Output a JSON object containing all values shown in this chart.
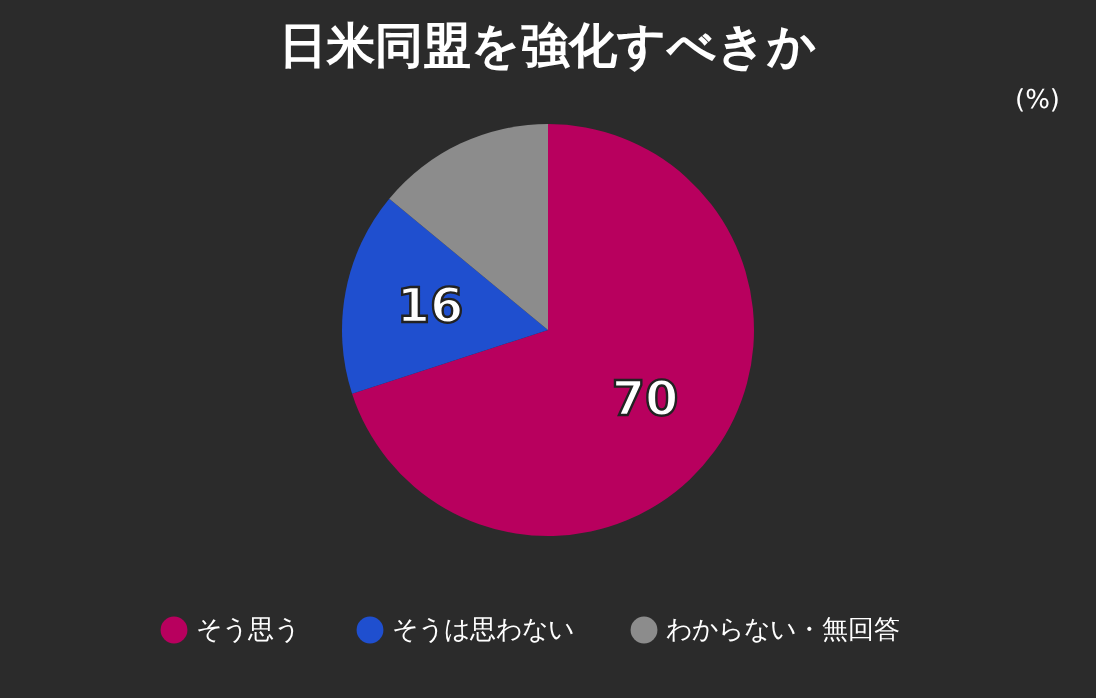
{
  "chart_data": {
    "type": "pie",
    "title": "日米同盟を強化すべきか",
    "annotations": [
      "(%)"
    ],
    "categories": [
      "そう思う",
      "そうは思わない",
      "わからない・無回答"
    ],
    "values": [
      70,
      16,
      14
    ],
    "value_labels": [
      "70",
      "16",
      null
    ],
    "colors": [
      "#b8005e",
      "#1f4fcf",
      "#8c8c8c"
    ],
    "legend": "bottom"
  }
}
